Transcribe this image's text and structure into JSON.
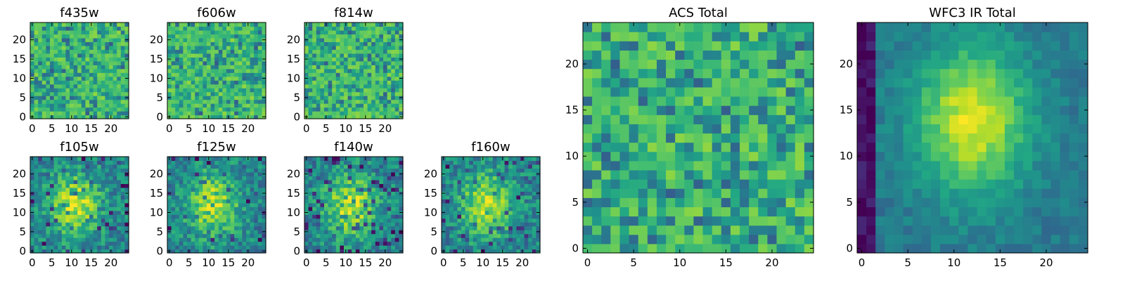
{
  "chart_data": [
    {
      "type": "heatmap",
      "title": "f435w",
      "colormap": "viridis",
      "grid_size": 25,
      "xlim": [
        0,
        24
      ],
      "ylim": [
        0,
        24
      ],
      "xticks": [
        0,
        5,
        10,
        15,
        20
      ],
      "yticks": [
        0,
        5,
        10,
        15,
        20
      ],
      "pattern": "noise",
      "seed": 11
    },
    {
      "type": "heatmap",
      "title": "f606w",
      "colormap": "viridis",
      "grid_size": 25,
      "xlim": [
        0,
        24
      ],
      "ylim": [
        0,
        24
      ],
      "xticks": [
        0,
        5,
        10,
        15,
        20
      ],
      "yticks": [
        0,
        5,
        10,
        15,
        20
      ],
      "pattern": "noise",
      "seed": 23
    },
    {
      "type": "heatmap",
      "title": "f814w",
      "colormap": "viridis",
      "grid_size": 25,
      "xlim": [
        0,
        24
      ],
      "ylim": [
        0,
        24
      ],
      "xticks": [
        0,
        5,
        10,
        15,
        20
      ],
      "yticks": [
        0,
        5,
        10,
        15,
        20
      ],
      "pattern": "noise",
      "seed": 37
    },
    {
      "type": "heatmap",
      "title": "f105w",
      "colormap": "viridis",
      "grid_size": 25,
      "xlim": [
        0,
        24
      ],
      "ylim": [
        0,
        24
      ],
      "xticks": [
        0,
        5,
        10,
        15,
        20
      ],
      "yticks": [
        0,
        5,
        10,
        15,
        20
      ],
      "pattern": "blob",
      "seed": 41
    },
    {
      "type": "heatmap",
      "title": "f125w",
      "colormap": "viridis",
      "grid_size": 25,
      "xlim": [
        0,
        24
      ],
      "ylim": [
        0,
        24
      ],
      "xticks": [
        0,
        5,
        10,
        15,
        20
      ],
      "yticks": [
        0,
        5,
        10,
        15,
        20
      ],
      "pattern": "blob",
      "seed": 53
    },
    {
      "type": "heatmap",
      "title": "f140w",
      "colormap": "viridis",
      "grid_size": 25,
      "xlim": [
        0,
        24
      ],
      "ylim": [
        0,
        24
      ],
      "xticks": [
        0,
        5,
        10,
        15,
        20
      ],
      "yticks": [
        0,
        5,
        10,
        15,
        20
      ],
      "pattern": "blob",
      "seed": 67
    },
    {
      "type": "heatmap",
      "title": "f160w",
      "colormap": "viridis",
      "grid_size": 25,
      "xlim": [
        0,
        24
      ],
      "ylim": [
        0,
        24
      ],
      "xticks": [
        0,
        5,
        10,
        15,
        20
      ],
      "yticks": [
        0,
        5,
        10,
        15,
        20
      ],
      "pattern": "blob",
      "seed": 79
    },
    {
      "type": "heatmap",
      "title": "ACS Total",
      "colormap": "viridis",
      "grid_size": 25,
      "xlim": [
        0,
        24
      ],
      "ylim": [
        0,
        24
      ],
      "xticks": [
        0,
        5,
        10,
        15,
        20
      ],
      "yticks": [
        0,
        5,
        10,
        15,
        20
      ],
      "pattern": "noise",
      "seed": 97
    },
    {
      "type": "heatmap",
      "title": "WFC3 IR Total",
      "colormap": "viridis",
      "grid_size": 25,
      "xlim": [
        0,
        24
      ],
      "ylim": [
        0,
        24
      ],
      "xticks": [
        0,
        5,
        10,
        15,
        20
      ],
      "yticks": [
        0,
        5,
        10,
        15,
        20
      ],
      "pattern": "smooth",
      "seed": 113
    }
  ]
}
